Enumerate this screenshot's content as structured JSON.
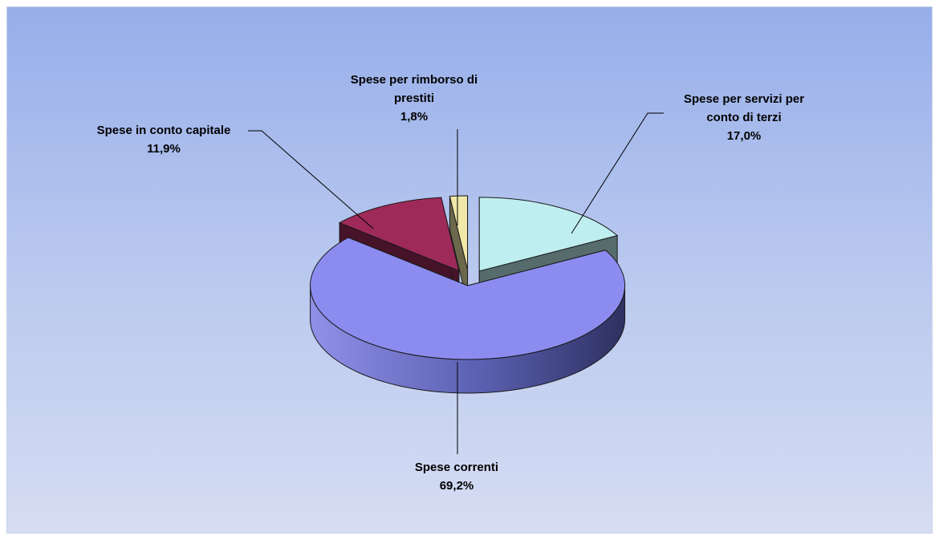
{
  "chart_data": {
    "type": "pie",
    "three_d": true,
    "exploded": true,
    "legend": "none",
    "slices": [
      {
        "label_lines": [
          "Spese per servizi per",
          "conto di terzi"
        ],
        "percent_label": "17,0%",
        "value": 17.0,
        "color": "#bfeef0"
      },
      {
        "label_lines": [
          "Spese correnti"
        ],
        "percent_label": "69,2%",
        "value": 69.2,
        "color": "#8c8cf0"
      },
      {
        "label_lines": [
          "Spese in conto capitale"
        ],
        "percent_label": "11,9%",
        "value": 11.9,
        "color": "#9e2a5a"
      },
      {
        "label_lines": [
          "Spese per rimborso di",
          "prestiti"
        ],
        "percent_label": "1,8%",
        "value": 1.8,
        "color": "#f0e8a8"
      }
    ]
  }
}
